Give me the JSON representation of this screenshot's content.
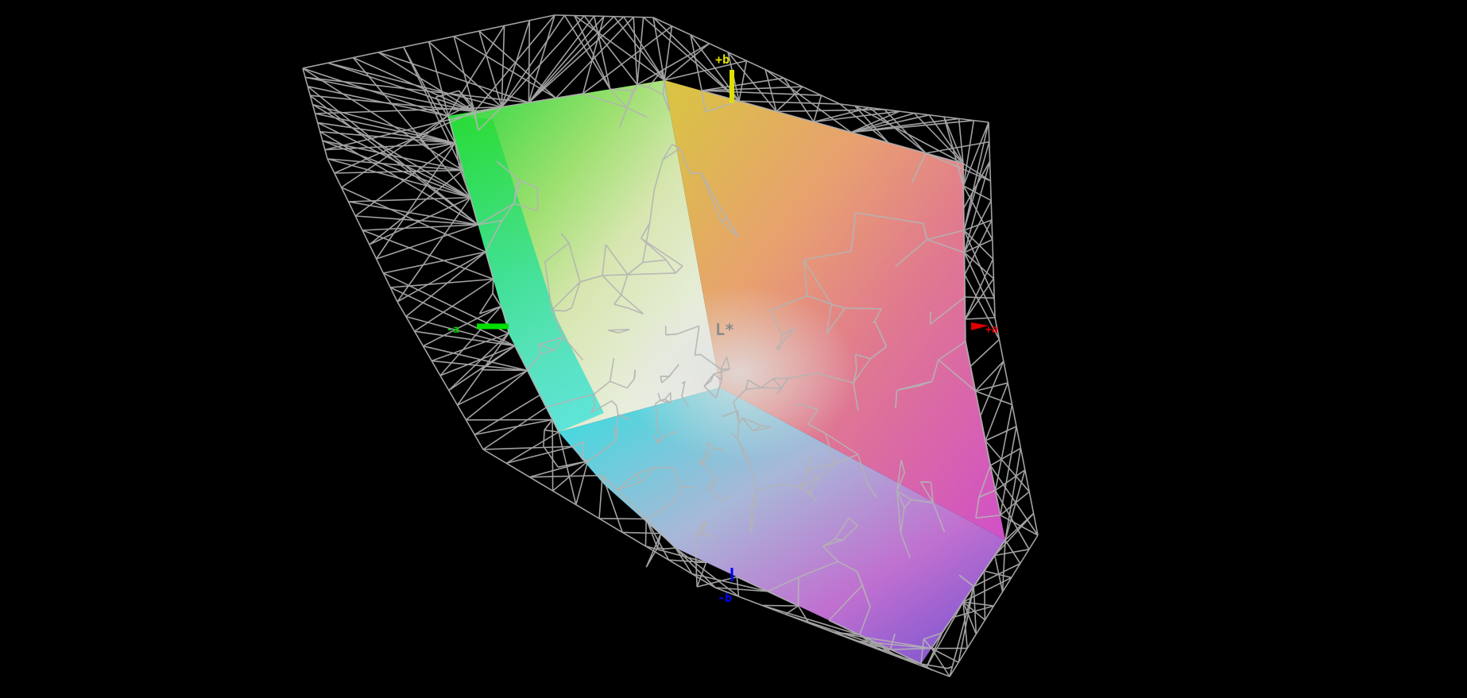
{
  "axes": {
    "plus_b": {
      "label": "+b",
      "color": "#e0e000"
    },
    "minus_b": {
      "label": "-b",
      "color": "#0000ff"
    },
    "plus_a": {
      "label": "+a",
      "color": "#e00000"
    },
    "minus_a": {
      "label": "-a",
      "color": "#00e000"
    },
    "lightness": {
      "label": "L*",
      "color": "#8a8a8a"
    }
  },
  "colors": {
    "background": "#000000",
    "wireframe": "#b4b4b4"
  }
}
